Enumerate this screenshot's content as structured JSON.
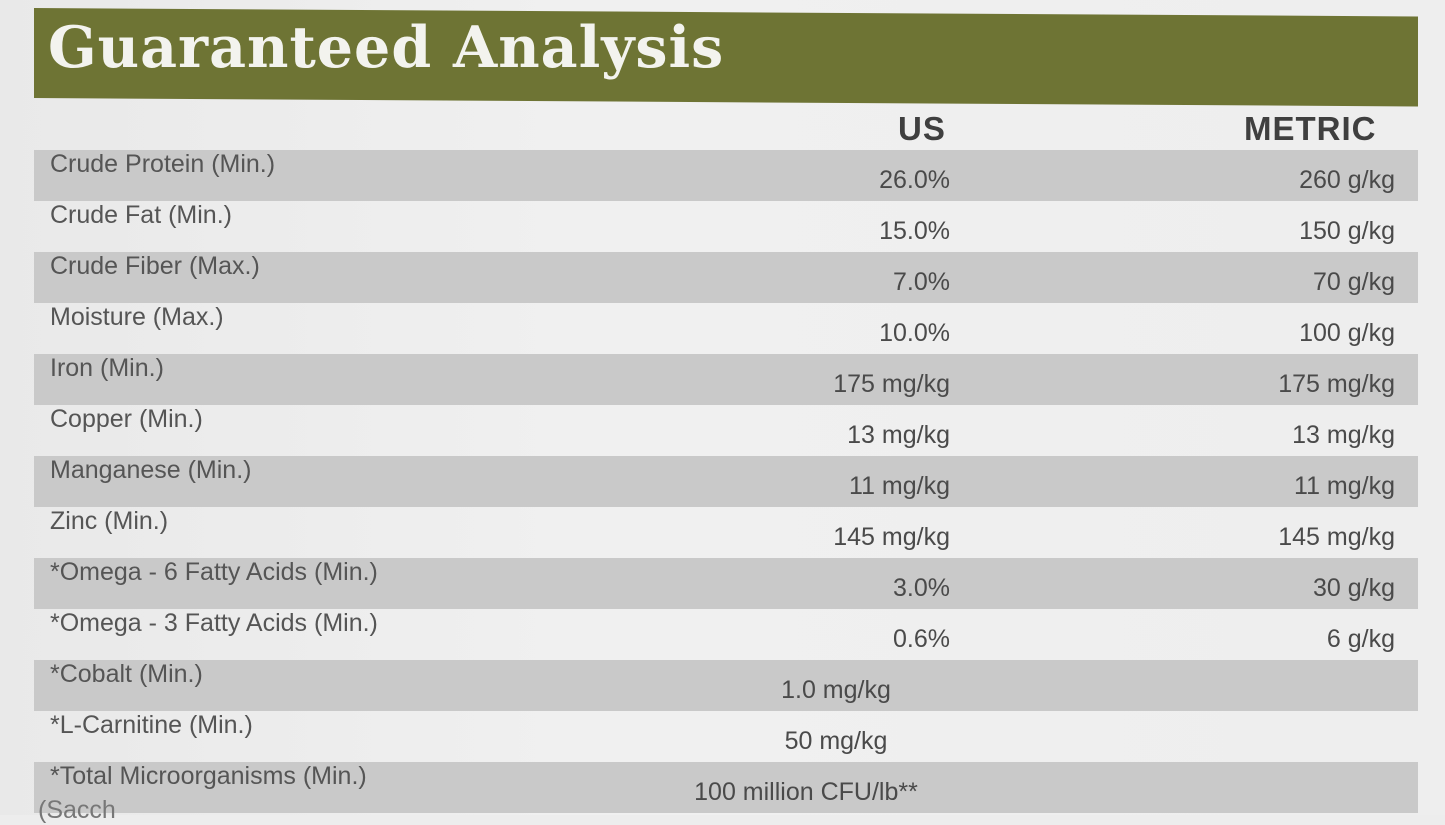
{
  "title": "Guaranteed Analysis",
  "columns": {
    "us": "US",
    "metric": "METRIC"
  },
  "rows": [
    {
      "label": "Crude Protein (Min.)",
      "us": "26.0%",
      "metric": "260 g/kg"
    },
    {
      "label": "Crude Fat (Min.)",
      "us": "15.0%",
      "metric": "150 g/kg"
    },
    {
      "label": "Crude Fiber (Max.)",
      "us": "7.0%",
      "metric": "70 g/kg"
    },
    {
      "label": "Moisture (Max.)",
      "us": "10.0%",
      "metric": "100 g/kg"
    },
    {
      "label": "Iron (Min.)",
      "us": "175 mg/kg",
      "metric": "175 mg/kg"
    },
    {
      "label": "Copper (Min.)",
      "us": "13 mg/kg",
      "metric": "13 mg/kg"
    },
    {
      "label": "Manganese (Min.)",
      "us": "11 mg/kg",
      "metric": "11 mg/kg"
    },
    {
      "label": "Zinc (Min.)",
      "us": "145 mg/kg",
      "metric": "145 mg/kg"
    },
    {
      "label": "*Omega - 6 Fatty Acids (Min.)",
      "us": "3.0%",
      "metric": "30 g/kg"
    },
    {
      "label": "*Omega - 3 Fatty Acids (Min.)",
      "us": "0.6%",
      "metric": "6 g/kg"
    },
    {
      "label": "*Cobalt (Min.)",
      "combined": "1.0 mg/kg"
    },
    {
      "label": "*L-Carnitine (Min.)",
      "combined": "50 mg/kg"
    },
    {
      "label": "*Total Microorganisms (Min.)",
      "combined": "100 million CFU/lb**"
    }
  ],
  "partial_line": "(Sacch"
}
